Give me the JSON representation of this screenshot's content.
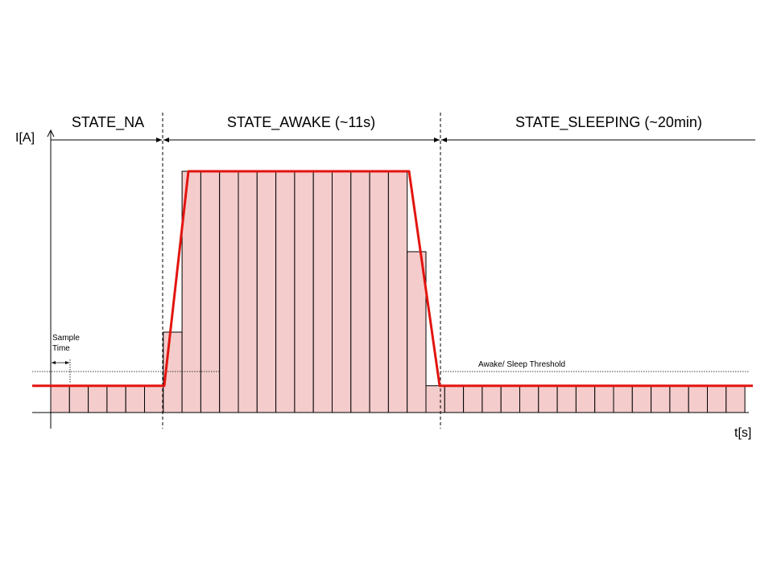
{
  "states": [
    {
      "label": "STATE_NA"
    },
    {
      "label": "STATE_AWAKE (~11s)"
    },
    {
      "label": "STATE_SLEEPING (~20min)"
    }
  ],
  "axes": {
    "y_label": "I[A]",
    "x_label": "t[s]"
  },
  "annotations": {
    "sample_time": [
      "Sample",
      "Time"
    ],
    "threshold": "Awake/ Sleep Threshold"
  },
  "chart_data": {
    "type": "bar",
    "xlabel": "t[s]",
    "ylabel": "I[A]",
    "sample_levels": [
      0.1,
      0.1,
      0.1,
      0.1,
      0.1,
      0.1,
      0.3,
      0.9,
      0.9,
      0.9,
      0.9,
      0.9,
      0.9,
      0.9,
      0.9,
      0.9,
      0.9,
      0.9,
      0.9,
      0.6,
      0.1,
      0.1,
      0.1,
      0.1,
      0.1,
      0.1,
      0.1,
      0.1,
      0.1,
      0.1,
      0.1,
      0.1,
      0.1,
      0.1,
      0.1,
      0.1,
      0.1
    ],
    "envelope_levels": [
      0.1,
      0.1,
      0.9,
      0.9,
      0.1,
      0.1
    ],
    "threshold_level": 0.15
  },
  "colors": {
    "bar_fill": "#f4cccc",
    "bar_stroke": "#000000",
    "envelope": "#e3140f",
    "axis": "#000000"
  }
}
